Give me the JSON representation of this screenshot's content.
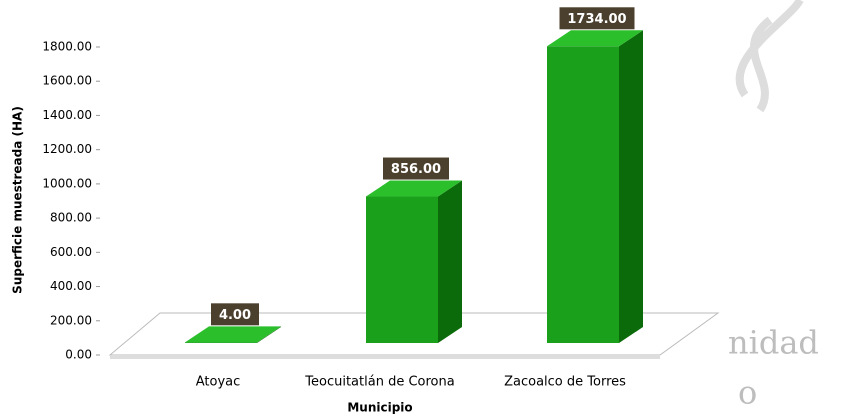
{
  "chart_data": {
    "type": "bar3d",
    "x_label": "Municipio",
    "y_label": "Superficie muestreada (HA)",
    "categories": [
      "Atoyac",
      "Teocuitatlán de Corona",
      "Zacoalco de Torres"
    ],
    "values": [
      4,
      856,
      1734
    ],
    "value_labels": [
      "4.00",
      "856.00",
      "1734.00"
    ],
    "color": "#1aa01a",
    "ylim": [
      0,
      1800
    ],
    "yticks": [
      {
        "value": 0,
        "label": "0.00"
      },
      {
        "value": 200,
        "label": "200.00"
      },
      {
        "value": 400,
        "label": "400.00"
      },
      {
        "value": 600,
        "label": "600.00"
      },
      {
        "value": 800,
        "label": "800.00"
      },
      {
        "value": 1000,
        "label": "1000.00"
      },
      {
        "value": 1200,
        "label": "1200.00"
      },
      {
        "value": 1400,
        "label": "1400.00"
      },
      {
        "value": 1600,
        "label": "1600.00"
      },
      {
        "value": 1800,
        "label": "1800.00"
      }
    ],
    "annotations": [
      "nidad",
      "o"
    ]
  }
}
